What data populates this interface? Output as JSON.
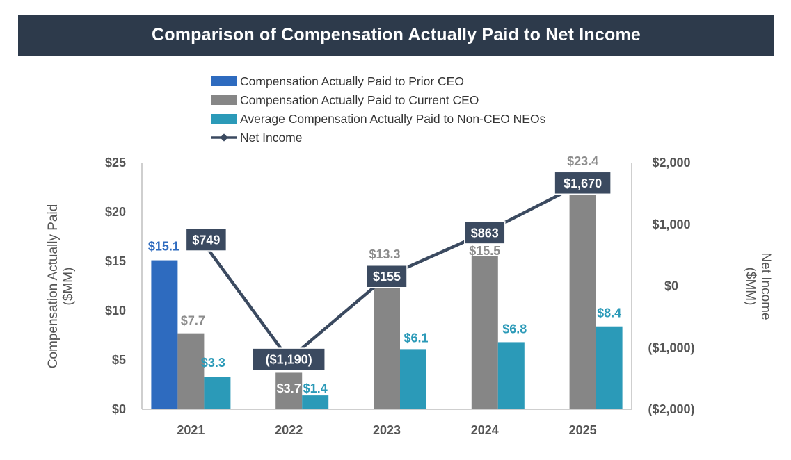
{
  "title": "Comparison of Compensation Actually Paid to Net Income",
  "colors": {
    "prior_ceo": "#2e6bbf",
    "current_ceo": "#868686",
    "neo": "#2b9ab8",
    "net_income": "#3b4a60",
    "axis": "#bfbfbf"
  },
  "chart_data": {
    "type": "bar",
    "categories": [
      "2021",
      "2022",
      "2023",
      "2024",
      "2025"
    ],
    "series": [
      {
        "name": "Compensation Actually Paid to Prior CEO",
        "kind": "bar",
        "axis": "left",
        "values": [
          15.1,
          null,
          null,
          null,
          null
        ],
        "labels": [
          "$15.1",
          null,
          null,
          null,
          null
        ]
      },
      {
        "name": "Compensation Actually Paid to Current CEO",
        "kind": "bar",
        "axis": "left",
        "values": [
          7.7,
          3.7,
          13.3,
          15.5,
          23.4
        ],
        "labels": [
          "$7.7",
          "$3.7",
          "$13.3",
          "$15.5",
          "$23.4"
        ]
      },
      {
        "name": "Average Compensation Actually Paid to Non-CEO NEOs",
        "kind": "bar",
        "axis": "left",
        "values": [
          3.3,
          1.4,
          6.1,
          6.8,
          8.4
        ],
        "labels": [
          "$3.3",
          "$1.4",
          "$6.1",
          "$6.8",
          "$8.4"
        ]
      },
      {
        "name": "Net Income",
        "kind": "line",
        "axis": "right",
        "values": [
          749,
          -1190,
          155,
          863,
          1670
        ],
        "labels": [
          "$749",
          "($1,190)",
          "$155",
          "$863",
          "$1,670"
        ]
      }
    ],
    "ylabel": "Compensation Actually Paid ($MM)",
    "ylabel_lines": [
      "Compensation Actually Paid",
      "($MM)"
    ],
    "ylim": [
      0,
      25
    ],
    "yticks": [
      0,
      5,
      10,
      15,
      20,
      25
    ],
    "ytick_labels": [
      "$0",
      "$5",
      "$10",
      "$15",
      "$20",
      "$25"
    ],
    "y2label": "Net Income ($MM)",
    "y2label_lines": [
      "Net Income",
      "($MM)"
    ],
    "y2lim": [
      -2000,
      2000
    ],
    "y2ticks": [
      -2000,
      -1000,
      0,
      1000,
      2000
    ],
    "y2tick_labels": [
      "($2,000)",
      "($1,000)",
      "$0",
      "$1,000",
      "$2,000"
    ],
    "legend_position": "top-center",
    "grid": false
  }
}
